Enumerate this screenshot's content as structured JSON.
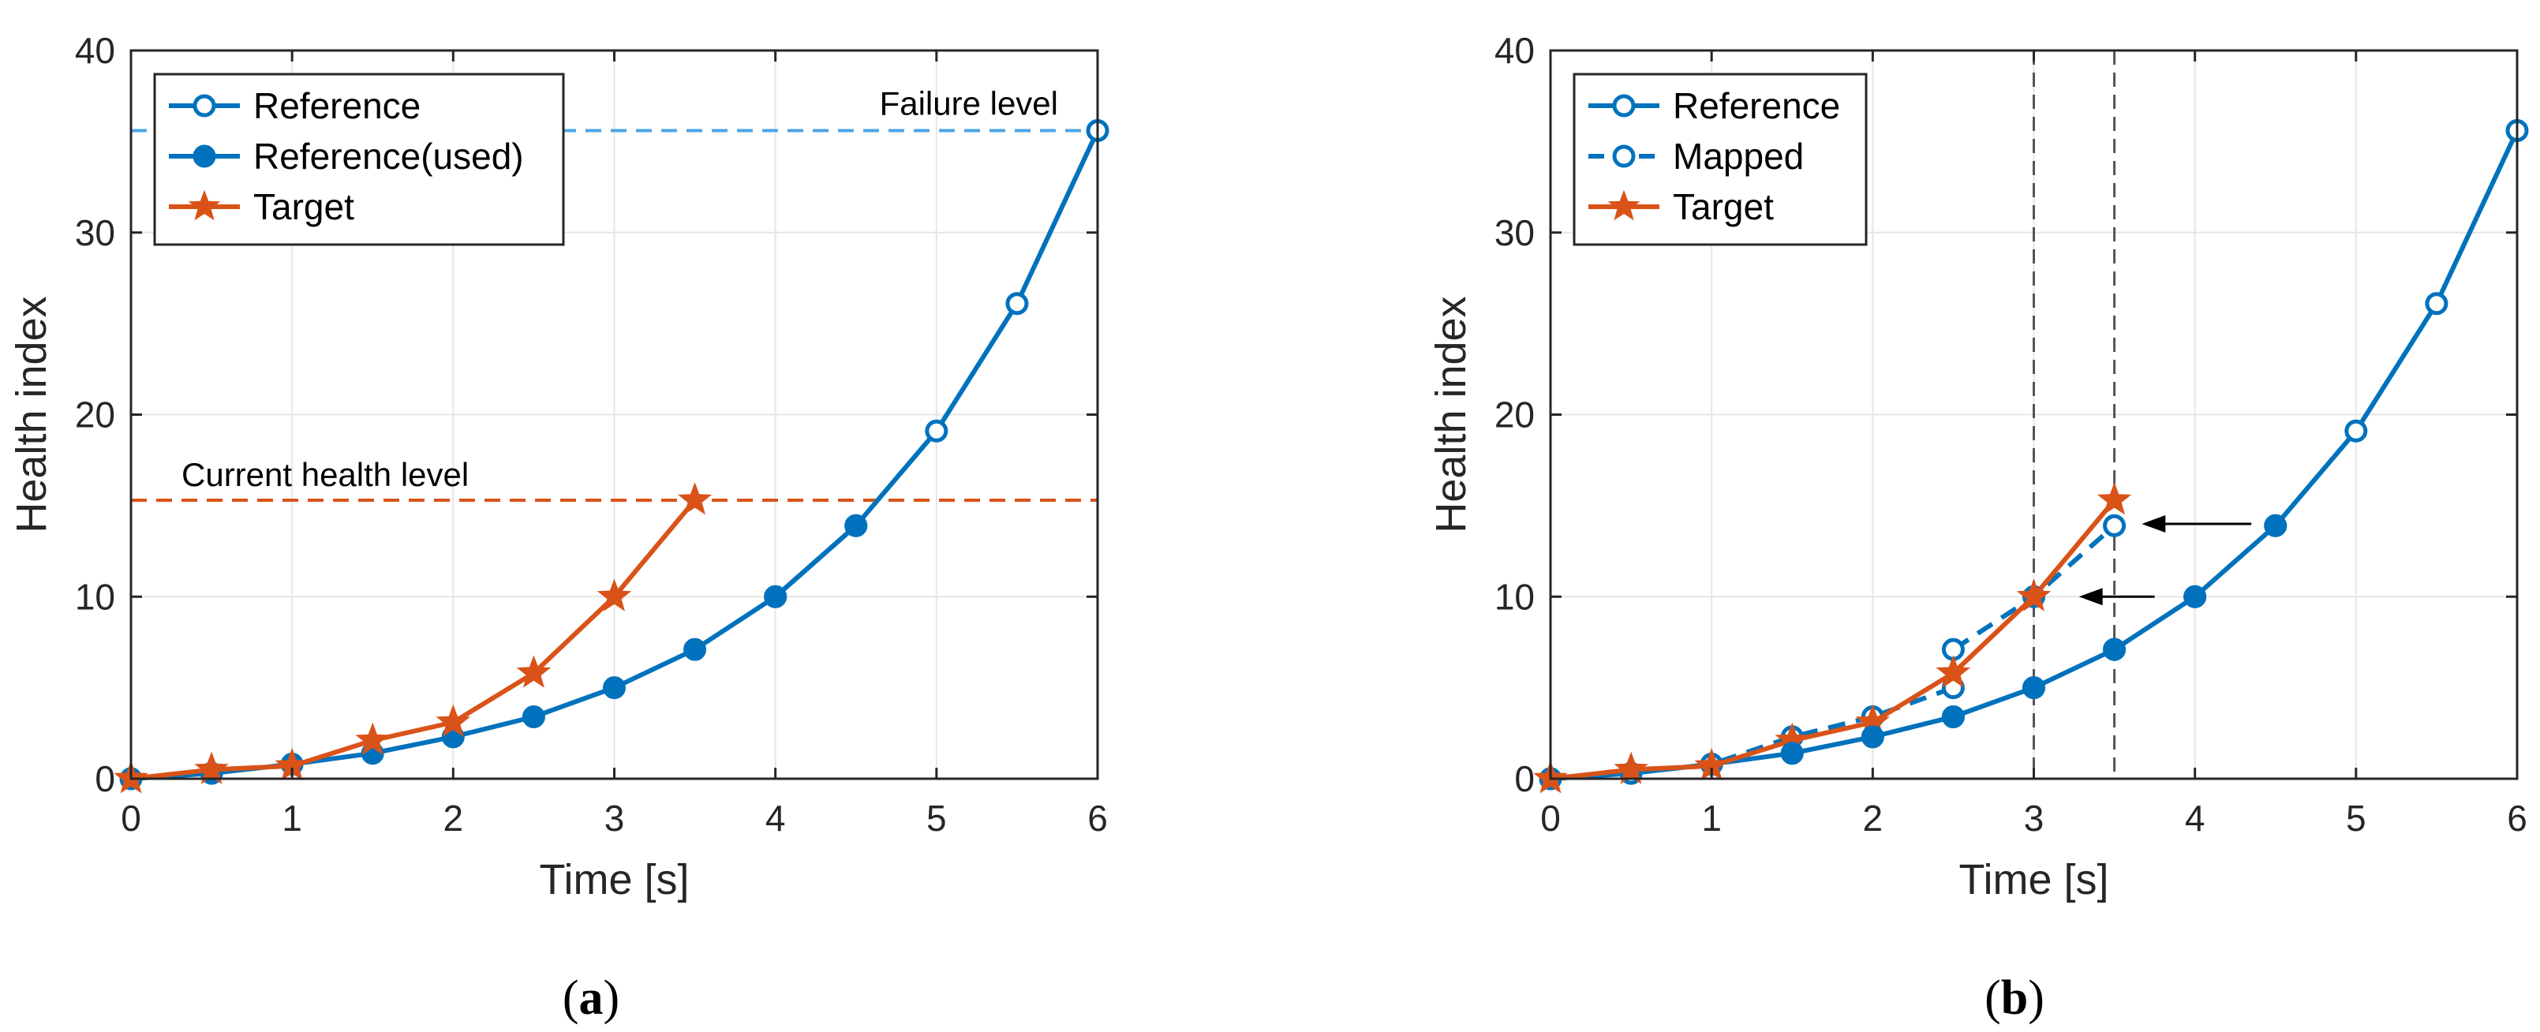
{
  "figure": {
    "panels": [
      {
        "caption_open": "(",
        "caption_letter": "a",
        "caption_close": ")"
      },
      {
        "caption_open": "(",
        "caption_letter": "b",
        "caption_close": ")"
      }
    ]
  },
  "colors": {
    "blue": "#0072BD",
    "blue_light": "#4DA6E8",
    "orange": "#D95319",
    "axis": "#262626",
    "grid": "#E6E6E6",
    "black": "#000000",
    "gray_dash": "#555555"
  },
  "chart_data": [
    {
      "type": "line",
      "panel": "a",
      "title": "",
      "xlabel": "Time [s]",
      "ylabel": "Health index",
      "xlim": [
        0,
        6
      ],
      "ylim": [
        0,
        40
      ],
      "xticks": [
        0,
        1,
        2,
        3,
        4,
        5,
        6
      ],
      "yticks": [
        0,
        10,
        20,
        30,
        40
      ],
      "grid": true,
      "legend_position": "top-left",
      "series": [
        {
          "name": "Reference",
          "style": "line-open-circle",
          "color": "blue",
          "x": [
            4,
            4.5,
            5,
            5.5,
            6
          ],
          "y": [
            10,
            13.9,
            19.1,
            26.1,
            35.6
          ]
        },
        {
          "name": "Reference(used)",
          "style": "line-filled-circle",
          "color": "blue",
          "x": [
            0,
            0.5,
            1,
            1.5,
            2,
            2.5,
            3,
            3.5,
            4,
            4.5
          ],
          "y": [
            0,
            0.3,
            0.8,
            1.4,
            2.3,
            3.4,
            5.0,
            7.1,
            10,
            13.9
          ]
        },
        {
          "name": "Target",
          "style": "line-star",
          "color": "orange",
          "x": [
            0,
            0.5,
            1,
            1.5,
            2,
            2.5,
            3,
            3.5
          ],
          "y": [
            0,
            0.5,
            0.7,
            2.1,
            3.1,
            5.8,
            10.0,
            15.3
          ]
        }
      ],
      "hlines": [
        {
          "y": 35.6,
          "color": "blue_light",
          "label": "Failure level"
        },
        {
          "y": 15.3,
          "color": "orange",
          "label": "Current health level"
        }
      ]
    },
    {
      "type": "line",
      "panel": "b",
      "title": "",
      "xlabel": "Time [s]",
      "ylabel": "Health index",
      "xlim": [
        0,
        6
      ],
      "ylim": [
        0,
        40
      ],
      "xticks": [
        0,
        1,
        2,
        3,
        4,
        5,
        6
      ],
      "yticks": [
        0,
        10,
        20,
        30,
        40
      ],
      "grid": true,
      "legend_position": "top-left",
      "series": [
        {
          "name": "Reference",
          "style": "line-open-circle",
          "color": "blue",
          "x": [
            0,
            0.5,
            1,
            1.5,
            2,
            2.5,
            3,
            3.5,
            4,
            4.5,
            5,
            5.5,
            6
          ],
          "y": [
            0,
            0.3,
            0.8,
            1.4,
            2.3,
            3.4,
            5.0,
            7.1,
            10,
            13.9,
            19.1,
            26.1,
            35.6
          ]
        },
        {
          "name": "Mapped",
          "style": "dashed-open-circle",
          "color": "blue",
          "x": [
            0,
            0.5,
            1,
            1.5,
            2,
            2.5,
            2.5,
            3,
            3.5
          ],
          "y": [
            0,
            0.3,
            0.8,
            2.3,
            3.4,
            5.0,
            7.1,
            10.0,
            13.9
          ]
        },
        {
          "name": "Target",
          "style": "line-star",
          "color": "orange",
          "x": [
            0,
            0.5,
            1,
            1.5,
            2,
            2.5,
            3,
            3.5
          ],
          "y": [
            0,
            0.5,
            0.7,
            2.1,
            3.1,
            5.8,
            10.0,
            15.3
          ]
        }
      ],
      "vlines": [
        {
          "x": 3
        },
        {
          "x": 3.5
        }
      ],
      "filled_reference_points": {
        "x": [
          1.5,
          2,
          2.5,
          3,
          3.5,
          4,
          4.5
        ],
        "y": [
          1.4,
          2.3,
          3.4,
          5.0,
          7.1,
          10,
          13.9
        ]
      },
      "annotations": [
        {
          "type": "arrow",
          "from": [
            4.35,
            14.0
          ],
          "to": [
            3.67,
            14.0
          ]
        },
        {
          "type": "arrow",
          "from": [
            3.75,
            10.0
          ],
          "to": [
            3.28,
            10.0
          ]
        }
      ]
    }
  ]
}
